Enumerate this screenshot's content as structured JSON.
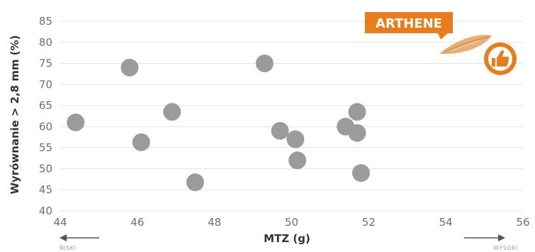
{
  "chart_data": {
    "type": "scatter",
    "title": "",
    "xlabel": "MTZ (g)",
    "ylabel": "Wyrównanie > 2,8 mm (%)",
    "xlim": [
      44,
      56
    ],
    "ylim": [
      40,
      85
    ],
    "x_ticks": [
      "44",
      "46",
      "48",
      "50",
      "52",
      "54",
      "56"
    ],
    "y_ticks": [
      "40",
      "45",
      "50",
      "55",
      "60",
      "65",
      "70",
      "75",
      "80",
      "85"
    ],
    "grid": "horizontal",
    "points": [
      {
        "x": 44.4,
        "y": 61.0
      },
      {
        "x": 45.8,
        "y": 74.0
      },
      {
        "x": 46.1,
        "y": 56.3
      },
      {
        "x": 46.9,
        "y": 63.5
      },
      {
        "x": 47.5,
        "y": 46.8
      },
      {
        "x": 49.3,
        "y": 75.0
      },
      {
        "x": 49.7,
        "y": 59.0
      },
      {
        "x": 50.1,
        "y": 57.0
      },
      {
        "x": 50.15,
        "y": 52.0
      },
      {
        "x": 51.4,
        "y": 60.0
      },
      {
        "x": 51.7,
        "y": 63.5
      },
      {
        "x": 51.7,
        "y": 58.5
      },
      {
        "x": 51.8,
        "y": 49.0
      }
    ],
    "highlight": {
      "label": "ARTHENE",
      "x": 55.0,
      "y": 77.5,
      "color": "#e87d1e"
    },
    "x_low_label": "NISKI",
    "x_high_label": "WYSOKI"
  },
  "colors": {
    "point": "#9b9b9b",
    "accent": "#e87d1e",
    "grid": "#e3e3e3",
    "grain": "#e6b07a"
  },
  "icons": {
    "thumbs_up": "thumbs-up-icon",
    "grain": "grain-icon"
  }
}
